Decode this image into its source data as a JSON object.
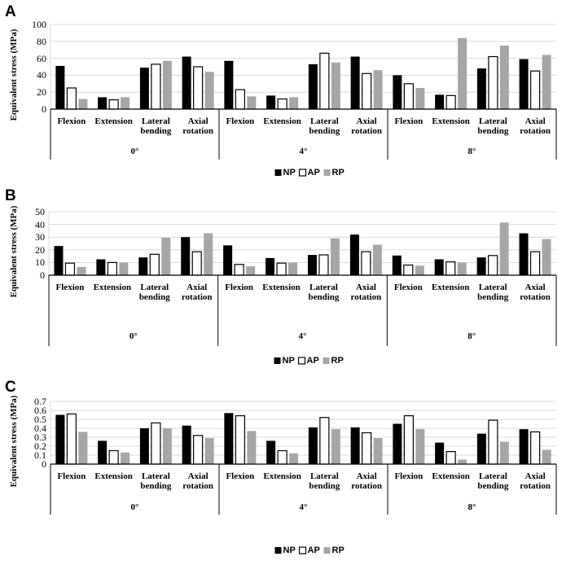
{
  "chart_data": [
    {
      "type": "bar",
      "label": "A",
      "ylabel": "Equivalent stress (MPa)",
      "groups": [
        "0°",
        "4°",
        "8°"
      ],
      "categories": [
        "Flexion",
        "Extension",
        "Lateral bending",
        "Axial rotation",
        "Flexion",
        "Extension",
        "Lateral bending",
        "Axial rotation",
        "Flexion",
        "Extension",
        "Lateral bending",
        "Axial rotation"
      ],
      "series": [
        {
          "name": "NP",
          "color": "#000000",
          "values": [
            51,
            14,
            49,
            62,
            57,
            16,
            53,
            62,
            40,
            17,
            48,
            59
          ]
        },
        {
          "name": "AP",
          "color": "#ffffff",
          "values": [
            25,
            11,
            53,
            50,
            23,
            12,
            66,
            42,
            30,
            16,
            62,
            45
          ]
        },
        {
          "name": "RP",
          "color": "#a6a6a6",
          "values": [
            12,
            14,
            57,
            44,
            15,
            14,
            55,
            46,
            25,
            84,
            75,
            64
          ]
        }
      ],
      "ylim": [
        0,
        100
      ],
      "yticks": [
        0,
        20,
        40,
        60,
        80,
        100
      ],
      "grid": true
    },
    {
      "type": "bar",
      "label": "B",
      "ylabel": "Equivalent stress (MPa)",
      "groups": [
        "0°",
        "4°",
        "8°"
      ],
      "categories": [
        "Flexion",
        "Extension",
        "Lateral bending",
        "Axial rotation",
        "Flexion",
        "Extension",
        "Lateral bending",
        "Axial rotation",
        "Flexion",
        "Extension",
        "Lateral bending",
        "Axial rotation"
      ],
      "series": [
        {
          "name": "NP",
          "color": "#000000",
          "values": [
            23,
            12.5,
            14,
            30,
            23.5,
            13.5,
            16,
            32,
            15.5,
            12.5,
            14,
            33
          ]
        },
        {
          "name": "AP",
          "color": "#ffffff",
          "values": [
            9.5,
            10,
            16.5,
            18.5,
            8.5,
            9.5,
            16,
            18.5,
            8,
            10.5,
            15.5,
            18.5
          ]
        },
        {
          "name": "RP",
          "color": "#a6a6a6",
          "values": [
            6.5,
            10,
            29.5,
            33,
            7,
            10,
            29,
            24,
            7.5,
            10,
            41.5,
            28.5
          ]
        }
      ],
      "ylim": [
        0,
        50
      ],
      "yticks": [
        0,
        10,
        20,
        30,
        40,
        50
      ],
      "grid": true
    },
    {
      "type": "bar",
      "label": "C",
      "ylabel": "Equivalent stress (MPa)",
      "groups": [
        "0°",
        "4°",
        "8°"
      ],
      "categories": [
        "Flexion",
        "Extension",
        "Lateral bending",
        "Axial rotation",
        "Flexion",
        "Extension",
        "Lateral bending",
        "Axial rotation",
        "Flexion",
        "Extension",
        "Lateral bending",
        "Axial rotation"
      ],
      "series": [
        {
          "name": "NP",
          "color": "#000000",
          "values": [
            0.55,
            0.26,
            0.4,
            0.43,
            0.57,
            0.26,
            0.41,
            0.41,
            0.45,
            0.24,
            0.34,
            0.39
          ]
        },
        {
          "name": "AP",
          "color": "#ffffff",
          "values": [
            0.56,
            0.15,
            0.46,
            0.32,
            0.54,
            0.15,
            0.52,
            0.35,
            0.54,
            0.14,
            0.49,
            0.36
          ]
        },
        {
          "name": "RP",
          "color": "#a6a6a6",
          "values": [
            0.36,
            0.13,
            0.4,
            0.29,
            0.37,
            0.12,
            0.39,
            0.29,
            0.39,
            0.05,
            0.25,
            0.16
          ]
        }
      ],
      "ylim": [
        0,
        0.7
      ],
      "yticks": [
        0,
        0.1,
        0.2,
        0.3,
        0.4,
        0.5,
        0.6,
        0.7
      ],
      "grid": true
    }
  ]
}
